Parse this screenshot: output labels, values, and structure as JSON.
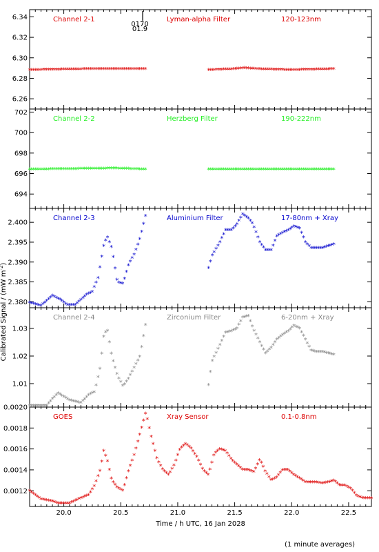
{
  "figure": {
    "ylabel": "Calibrated Signal / (mW m",
    "ylabel_sup": "-2",
    "ylabel_end": ")",
    "xlabel": "Time / h UTC, 16 Jan 2028",
    "note": "(1 minute averages)",
    "marker": "*",
    "top_annotation": [
      "0170",
      "01.9"
    ]
  },
  "chart_data": [
    {
      "type": "scatter",
      "panel": "channel-2-1",
      "label_left": "Channel 2-1",
      "label_mid": "Lyman-alpha Filter",
      "label_right": "120-123nm",
      "color": "#dd0000",
      "xlim": [
        19.7,
        22.7
      ],
      "ylim": [
        6.25,
        6.347
      ],
      "yticks": [
        6.26,
        6.28,
        6.3,
        6.32,
        6.34
      ],
      "ytick_labels": [
        "6.26",
        "6.28",
        "6.30",
        "6.32",
        "6.34"
      ],
      "segments": [
        {
          "x": [
            19.7,
            20.2,
            20.72
          ],
          "y": [
            6.288,
            6.289,
            6.289
          ]
        },
        {
          "x": [
            21.27,
            21.5,
            21.58,
            21.7,
            22.0,
            22.37
          ],
          "y": [
            6.288,
            6.289,
            6.29,
            6.289,
            6.288,
            6.289
          ]
        }
      ]
    },
    {
      "type": "scatter",
      "panel": "channel-2-2",
      "label_left": "Channel 2-2",
      "label_mid": "Herzberg Filter",
      "label_right": "190-222nm",
      "color": "#22ee22",
      "xlim": [
        19.7,
        22.7
      ],
      "ylim": [
        692.6,
        702.3
      ],
      "yticks": [
        694,
        696,
        698,
        700,
        702
      ],
      "ytick_labels": [
        "694",
        "696",
        "698",
        "700",
        "702"
      ],
      "segments": [
        {
          "x": [
            19.7,
            20.45,
            20.72
          ],
          "y": [
            696.4,
            696.5,
            696.4
          ]
        },
        {
          "x": [
            21.27,
            21.8,
            22.37
          ],
          "y": [
            696.4,
            696.4,
            696.4
          ]
        }
      ]
    },
    {
      "type": "scatter",
      "panel": "channel-2-3",
      "label_left": "Channel 2-3",
      "label_mid": "Aluminium Filter",
      "label_right": "17-80nm + Xray",
      "color": "#0000cc",
      "xlim": [
        19.7,
        22.7
      ],
      "ylim": [
        2.3785,
        2.4035
      ],
      "yticks": [
        2.38,
        2.385,
        2.39,
        2.395,
        2.4
      ],
      "ytick_labels": [
        "2.380",
        "2.385",
        "2.390",
        "2.395",
        "2.400"
      ],
      "segments": [
        {
          "x": [
            19.7,
            19.8,
            19.9,
            19.97,
            20.03,
            20.1,
            20.2,
            20.25,
            20.3,
            20.35,
            20.38,
            20.42,
            20.47,
            20.52,
            20.57,
            20.62,
            20.67,
            20.72
          ],
          "y": [
            2.3798,
            2.379,
            2.3815,
            2.3805,
            2.3792,
            2.3792,
            2.3818,
            2.3825,
            2.386,
            2.394,
            2.3965,
            2.3935,
            2.385,
            2.3845,
            2.3895,
            2.392,
            2.396,
            2.402
          ]
        },
        {
          "x": [
            21.27,
            21.3,
            21.37,
            21.42,
            21.47,
            21.52,
            21.57,
            21.62,
            21.66,
            21.72,
            21.77,
            21.82,
            21.87,
            21.93,
            21.97,
            22.02,
            22.07,
            22.12,
            22.17,
            22.22,
            22.27,
            22.32,
            22.37
          ],
          "y": [
            2.3885,
            2.3915,
            2.395,
            2.398,
            2.398,
            2.3995,
            2.402,
            2.401,
            2.3995,
            2.395,
            2.393,
            2.393,
            2.3965,
            2.3975,
            2.398,
            2.399,
            2.3985,
            2.395,
            2.3935,
            2.3935,
            2.3935,
            2.394,
            2.3945
          ]
        }
      ]
    },
    {
      "type": "scatter",
      "panel": "channel-2-4",
      "label_left": "Channel 2-4",
      "label_mid": "Zirconium Filter",
      "label_right": "6-20nm + Xray",
      "color": "#888888",
      "xlim": [
        19.7,
        22.7
      ],
      "ylim": [
        1.0015,
        1.0375
      ],
      "yticks": [
        1.01,
        1.02,
        1.03
      ],
      "ytick_labels": [
        "1.01",
        "1.02",
        "1.03"
      ],
      "segments": [
        {
          "x": [
            19.7,
            19.85,
            19.9,
            19.95,
            20.05,
            20.15,
            20.22,
            20.27,
            20.32,
            20.35,
            20.38,
            20.42,
            20.47,
            20.52,
            20.57,
            20.62,
            20.67,
            20.72
          ],
          "y": [
            1.002,
            1.002,
            1.0045,
            1.0065,
            1.004,
            1.003,
            1.006,
            1.007,
            1.016,
            1.027,
            1.03,
            1.02,
            1.013,
            1.009,
            1.012,
            1.016,
            1.02,
            1.032
          ]
        },
        {
          "x": [
            21.27,
            21.3,
            21.37,
            21.42,
            21.47,
            21.52,
            21.57,
            21.62,
            21.66,
            21.72,
            21.77,
            21.82,
            21.87,
            21.93,
            21.97,
            22.02,
            22.07,
            22.12,
            22.17,
            22.22,
            22.27,
            22.32,
            22.37
          ],
          "y": [
            1.0095,
            1.018,
            1.024,
            1.0285,
            1.029,
            1.03,
            1.034,
            1.0345,
            1.03,
            1.025,
            1.021,
            1.023,
            1.026,
            1.028,
            1.029,
            1.031,
            1.03,
            1.026,
            1.022,
            1.0215,
            1.0215,
            1.021,
            1.0205
          ]
        }
      ]
    },
    {
      "type": "scatter",
      "panel": "goes",
      "label_left": "GOES",
      "label_mid": "Xray Sensor",
      "label_right": "0.1-0.8nm",
      "color": "#dd0000",
      "xlim": [
        19.7,
        22.7
      ],
      "ylim": [
        0.00105,
        0.002
      ],
      "yticks": [
        0.0012,
        0.0014,
        0.0016,
        0.0018,
        0.002
      ],
      "ytick_labels": [
        "0.0012",
        "0.0014",
        "0.0016",
        "0.0018",
        "0.0020"
      ],
      "xticks": [
        20.0,
        20.5,
        21.0,
        21.5,
        22.0,
        22.5
      ],
      "xtick_labels": [
        "20.0",
        "20.5",
        "21.0",
        "21.5",
        "22.0",
        "22.5"
      ],
      "segments": [
        {
          "x": [
            19.7,
            19.8,
            19.9,
            19.95,
            20.05,
            20.15,
            20.22,
            20.27,
            20.32,
            20.35,
            20.38,
            20.42,
            20.47,
            20.52,
            20.57,
            20.62,
            20.67,
            20.72,
            20.77,
            20.82,
            20.87,
            20.92,
            20.97,
            21.02,
            21.07,
            21.12,
            21.17,
            21.22,
            21.27,
            21.32,
            21.37,
            21.42,
            21.47,
            21.52,
            21.57,
            21.62,
            21.67,
            21.72,
            21.77,
            21.82,
            21.87,
            21.92,
            21.97,
            22.02,
            22.07,
            22.12,
            22.17,
            22.22,
            22.27,
            22.32,
            22.37,
            22.42,
            22.47,
            22.52,
            22.57,
            22.62,
            22.7
          ],
          "y": [
            0.0012,
            0.00112,
            0.0011,
            0.00108,
            0.00108,
            0.00113,
            0.00116,
            0.00125,
            0.0014,
            0.00158,
            0.0015,
            0.0013,
            0.00123,
            0.0012,
            0.0014,
            0.00155,
            0.00175,
            0.00195,
            0.0017,
            0.0015,
            0.0014,
            0.00135,
            0.00145,
            0.0016,
            0.00165,
            0.0016,
            0.00152,
            0.0014,
            0.00135,
            0.00155,
            0.0016,
            0.00158,
            0.0015,
            0.00145,
            0.0014,
            0.0014,
            0.00138,
            0.0015,
            0.00138,
            0.0013,
            0.00133,
            0.0014,
            0.0014,
            0.00135,
            0.00132,
            0.00128,
            0.00128,
            0.00128,
            0.00127,
            0.00128,
            0.0013,
            0.00125,
            0.00125,
            0.00122,
            0.00115,
            0.00113,
            0.00113
          ]
        }
      ]
    }
  ]
}
